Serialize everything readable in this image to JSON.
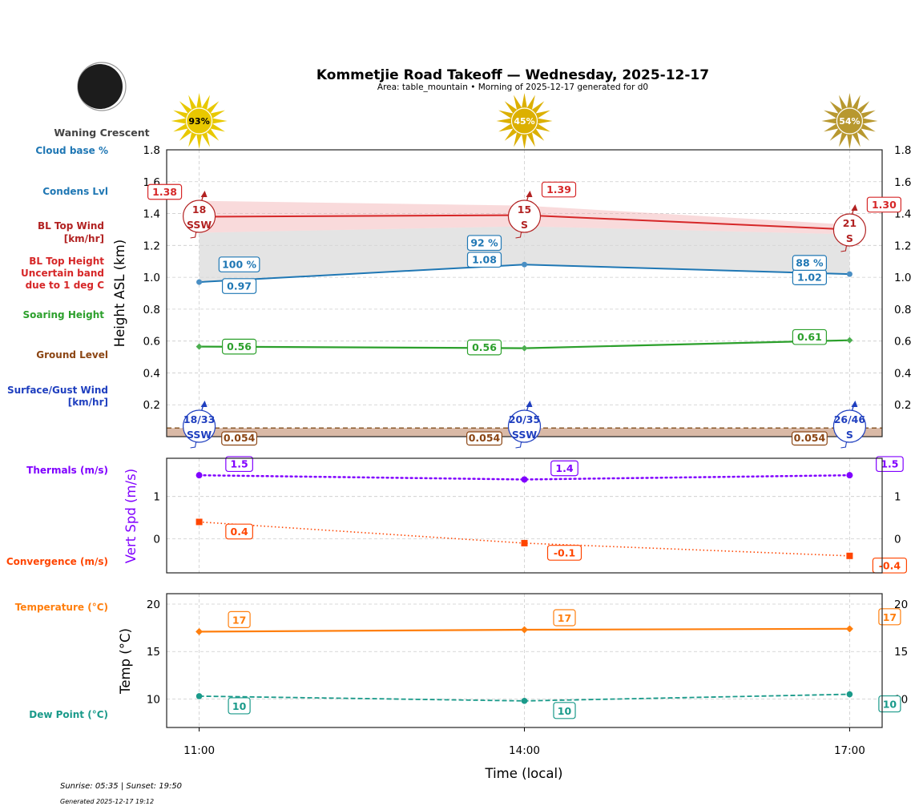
{
  "header": {
    "title": "Kommetjie Road Takeoff — Wednesday, 2025-12-17",
    "subtitle": "Area: table_mountain • Morning of 2025-12-17 generated for d0",
    "moon_phase": "Waning Crescent",
    "moon_icon": "waning-crescent-moon-icon"
  },
  "footer": {
    "sun_times": "Sunrise: 05:35 | Sunset: 19:50",
    "generated": "Generated 2025-12-17 19:12"
  },
  "legend_labels": {
    "cloud_base": "Cloud base %",
    "condens": "Condens Lvl",
    "bl_wind_1": "BL Top Wind",
    "bl_wind_2": "[km/hr]",
    "bl_height_1": "BL Top Height",
    "bl_height_2": "Uncertain band",
    "bl_height_3": "due to 1 deg C",
    "soaring": "Soaring Height",
    "ground": "Ground Level",
    "surface_1": "Surface/Gust Wind",
    "surface_2": "[km/hr]",
    "thermals": "Thermals (m/s)",
    "convergence": "Convergence (m/s)",
    "temperature": "Temperature (°C)",
    "dew": "Dew Point (°C)"
  },
  "colors": {
    "cloud": "#1f77b4",
    "bl_wind": "#b22222",
    "bl_height": "#d62728",
    "soaring": "#2ca02c",
    "ground": "#8b4513",
    "surface_wind": "#1f3fbf",
    "thermals": "#8000ff",
    "convergence": "#ff4500",
    "temperature": "#ff7f0e",
    "dew": "#1a9a8a"
  },
  "chart_data": [
    {
      "type": "line",
      "ylabel": "Height ASL (km)",
      "ylim": [
        0,
        1.8
      ],
      "yticks": [
        "0.2",
        "0.4",
        "0.6",
        "0.8",
        "1.0",
        "1.2",
        "1.4",
        "1.6",
        "1.8"
      ],
      "xlim": [
        "10:42",
        "17:18"
      ],
      "grid": true,
      "x": [
        "11:00",
        "14:00",
        "17:00"
      ],
      "cloud_cover_pct": [
        "93%",
        "45%",
        "54%"
      ],
      "sun_colors": [
        "#e8c800",
        "#dcb000",
        "#b8982f"
      ],
      "bl_top_height": {
        "values": [
          1.38,
          1.39,
          1.3
        ],
        "labels": [
          "1.38",
          "1.39",
          "1.30"
        ],
        "band_upper": [
          1.48,
          1.45,
          1.33
        ],
        "band_lower": [
          1.28,
          1.32,
          1.27
        ]
      },
      "condensation_level": {
        "values": [
          0.97,
          1.08,
          1.02
        ],
        "labels": [
          "0.97",
          "1.08",
          "1.02"
        ]
      },
      "cloud_base_pct": [
        "100 %",
        "92 %",
        "88 %"
      ],
      "soaring_height": {
        "values": [
          0.565,
          0.555,
          0.605
        ],
        "labels": [
          "0.56",
          "0.56",
          "0.61"
        ]
      },
      "ground_level": {
        "values": [
          0.054,
          0.054,
          0.054
        ],
        "labels": [
          "0.054",
          "0.054",
          "0.054"
        ]
      },
      "bl_top_wind": [
        {
          "speed": "18",
          "dir": "SSW"
        },
        {
          "speed": "15",
          "dir": "S"
        },
        {
          "speed": "21",
          "dir": "S"
        }
      ],
      "surface_wind": [
        {
          "speed": "18/33",
          "dir": "SSW"
        },
        {
          "speed": "20/35",
          "dir": "SSW"
        },
        {
          "speed": "26/46",
          "dir": "S"
        }
      ]
    },
    {
      "type": "line",
      "ylabel": "Vert Spd (m/s)",
      "ylim": [
        -0.8,
        1.9
      ],
      "yticks": [
        "0",
        "1"
      ],
      "grid": true,
      "x": [
        "11:00",
        "14:00",
        "17:00"
      ],
      "series": [
        {
          "key": "thermals",
          "values": [
            1.5,
            1.4,
            1.5
          ],
          "labels": [
            "1.5",
            "1.4",
            "1.5"
          ]
        },
        {
          "key": "convergence",
          "values": [
            0.4,
            -0.1,
            -0.4
          ],
          "labels": [
            "0.4",
            "-0.1",
            "-0.4"
          ]
        }
      ]
    },
    {
      "type": "line",
      "ylabel": "Temp (°C)",
      "xlabel": "Time (local)",
      "ylim": [
        7,
        21.1
      ],
      "yticks": [
        "10",
        "15",
        "20"
      ],
      "xticks": [
        "11:00",
        "14:00",
        "17:00"
      ],
      "grid": true,
      "x": [
        "11:00",
        "14:00",
        "17:00"
      ],
      "series": [
        {
          "key": "temperature",
          "values": [
            17.1,
            17.3,
            17.4
          ],
          "labels": [
            "17",
            "17",
            "17"
          ]
        },
        {
          "key": "dew",
          "values": [
            10.3,
            9.8,
            10.5
          ],
          "labels": [
            "10",
            "10",
            "10"
          ]
        }
      ]
    }
  ]
}
